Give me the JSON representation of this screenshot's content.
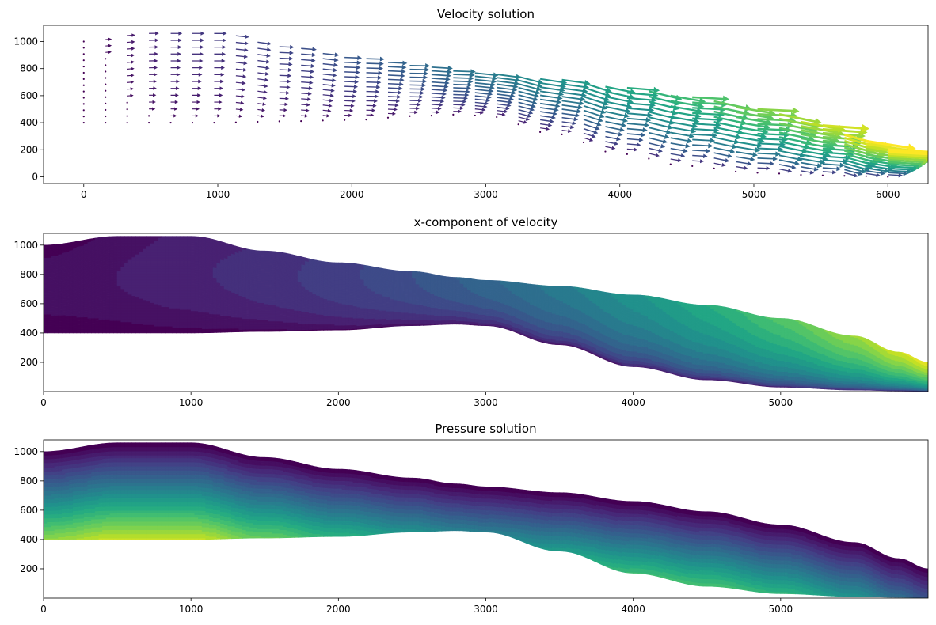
{
  "chart_data": [
    {
      "type": "quiver",
      "title": "Velocity solution",
      "xlabel": "",
      "ylabel": "",
      "xlim": [
        -300,
        6300
      ],
      "ylim": [
        -50,
        1120
      ],
      "xticks": [
        0,
        1000,
        2000,
        3000,
        4000,
        5000,
        6000
      ],
      "yticks": [
        0,
        200,
        400,
        600,
        800,
        1000
      ],
      "colormap": "viridis",
      "domain": {
        "x": [
          0,
          500,
          1000,
          1500,
          2000,
          2500,
          2800,
          3000,
          3500,
          4000,
          4500,
          5000,
          5500,
          5800,
          6000
        ],
        "top": [
          1000,
          1060,
          1060,
          960,
          880,
          820,
          780,
          760,
          720,
          660,
          590,
          500,
          380,
          270,
          200
        ],
        "bottom": [
          400,
          400,
          400,
          410,
          420,
          450,
          460,
          450,
          320,
          170,
          80,
          30,
          10,
          5,
          0
        ]
      },
      "grid": false
    },
    {
      "type": "filled-contour",
      "title": "x-component of velocity",
      "xlabel": "",
      "ylabel": "",
      "xlim": [
        0,
        6000
      ],
      "ylim": [
        0,
        1080
      ],
      "xticks": [
        0,
        1000,
        2000,
        3000,
        4000,
        5000
      ],
      "yticks": [
        200,
        400,
        600,
        800,
        1000
      ],
      "colormap": "viridis",
      "grid": false
    },
    {
      "type": "filled-contour",
      "title": "Pressure solution",
      "xlabel": "",
      "ylabel": "",
      "xlim": [
        0,
        6000
      ],
      "ylim": [
        0,
        1080
      ],
      "xticks": [
        0,
        1000,
        2000,
        3000,
        4000,
        5000
      ],
      "yticks": [
        200,
        400,
        600,
        800,
        1000
      ],
      "colormap": "viridis",
      "grid": false
    }
  ]
}
